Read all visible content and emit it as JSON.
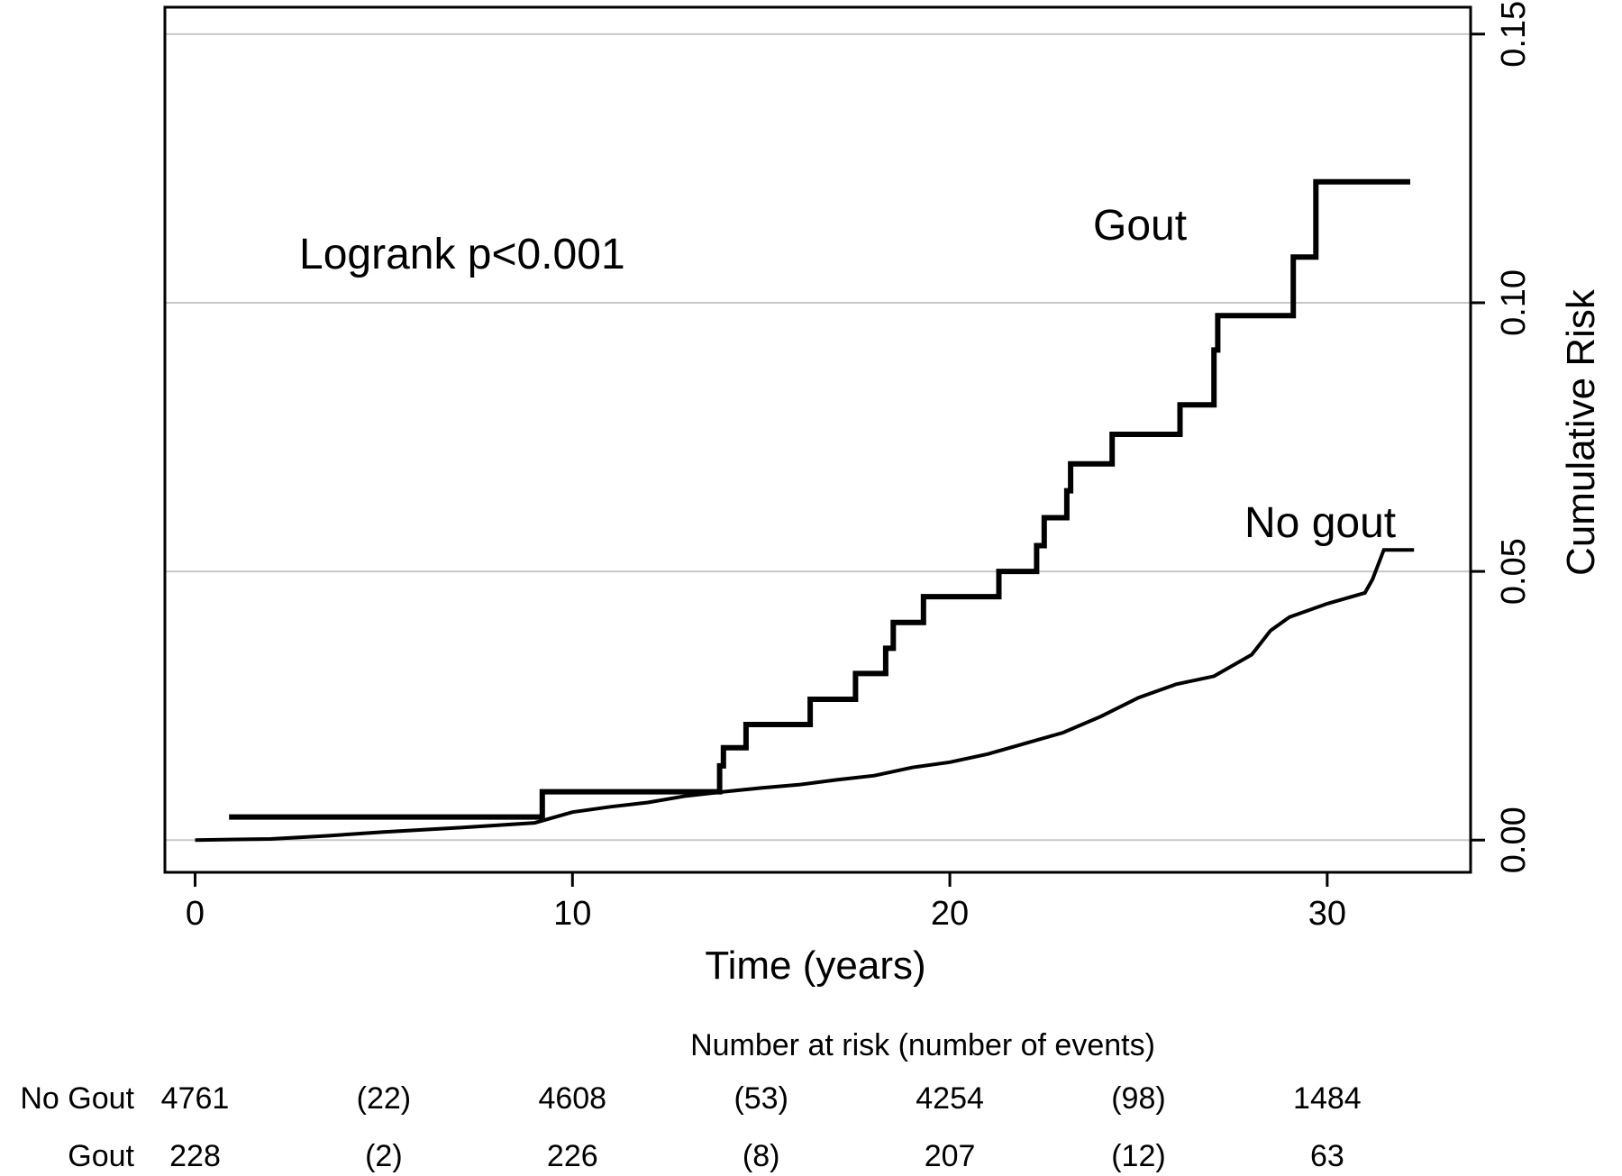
{
  "chart_data": {
    "type": "line",
    "title": "",
    "xlabel": "Time (years)",
    "ylabel": "Cumulative Risk",
    "xlim": [
      -0.8,
      33.8
    ],
    "ylim": [
      -0.006,
      0.155
    ],
    "x_ticks": [
      0,
      10,
      20,
      30
    ],
    "x_tick_labels": [
      "0",
      "10",
      "20",
      "30"
    ],
    "y_ticks": [
      0,
      0.05,
      0.1,
      0.15
    ],
    "y_tick_labels": [
      "0.00",
      "0.05",
      "0.10",
      "0.15"
    ],
    "y_axis_side": "right",
    "y_tick_label_rotation": "vertical",
    "grid": "horizontal",
    "legend": "none",
    "annotation": "Logrank p<0.001",
    "series": [
      {
        "name": "Gout",
        "step": true,
        "x": [
          0.9,
          9.2,
          9.2,
          13.9,
          13.9,
          14.0,
          14.0,
          14.6,
          14.6,
          16.3,
          16.3,
          17.5,
          17.5,
          18.3,
          18.3,
          18.5,
          18.5,
          19.3,
          19.3,
          21.3,
          21.3,
          22.3,
          22.3,
          22.5,
          22.5,
          23.1,
          23.1,
          23.2,
          23.2,
          24.3,
          24.3,
          26.1,
          26.1,
          27.0,
          27.0,
          27.1,
          27.1,
          29.1,
          29.1,
          29.7,
          29.7,
          32.2
        ],
        "y": [
          0.0043,
          0.0043,
          0.009,
          0.009,
          0.0138,
          0.0138,
          0.0172,
          0.0172,
          0.0215,
          0.0215,
          0.0262,
          0.0262,
          0.031,
          0.031,
          0.0357,
          0.0357,
          0.0405,
          0.0405,
          0.0453,
          0.0453,
          0.05,
          0.05,
          0.0548,
          0.0548,
          0.06,
          0.06,
          0.065,
          0.065,
          0.07,
          0.07,
          0.0755,
          0.0755,
          0.081,
          0.081,
          0.0912,
          0.0912,
          0.0976,
          0.0976,
          0.1085,
          0.1085,
          0.1225,
          0.1225
        ],
        "end_label": "Gout"
      },
      {
        "name": "No gout",
        "step": false,
        "x": [
          0,
          2,
          3.5,
          5,
          7,
          9,
          10,
          11,
          12,
          13,
          14,
          15,
          16,
          17,
          18,
          19,
          20,
          21,
          22,
          23,
          24,
          25,
          26,
          27,
          28,
          28.5,
          29,
          30,
          31,
          31.2,
          31.5,
          32.3
        ],
        "y": [
          0,
          0.0002,
          0.0008,
          0.0015,
          0.0023,
          0.0032,
          0.0052,
          0.0062,
          0.007,
          0.0082,
          0.009,
          0.0097,
          0.0103,
          0.0112,
          0.012,
          0.0135,
          0.0145,
          0.016,
          0.018,
          0.02,
          0.023,
          0.0265,
          0.029,
          0.0305,
          0.0345,
          0.039,
          0.0415,
          0.044,
          0.046,
          0.0485,
          0.054,
          0.054
        ],
        "end_label": "No gout"
      }
    ],
    "risk_table": {
      "title": "Number at risk (number of events)",
      "x_positions": [
        0,
        5,
        10,
        15,
        20,
        25,
        30
      ],
      "rows": [
        {
          "label": "No Gout",
          "values": [
            "4761",
            "(22)",
            "4608",
            "(53)",
            "4254",
            "(98)",
            "1484"
          ]
        },
        {
          "label": "Gout",
          "values": [
            "228",
            "(2)",
            "226",
            "(8)",
            "207",
            "(12)",
            "63"
          ]
        }
      ]
    }
  }
}
